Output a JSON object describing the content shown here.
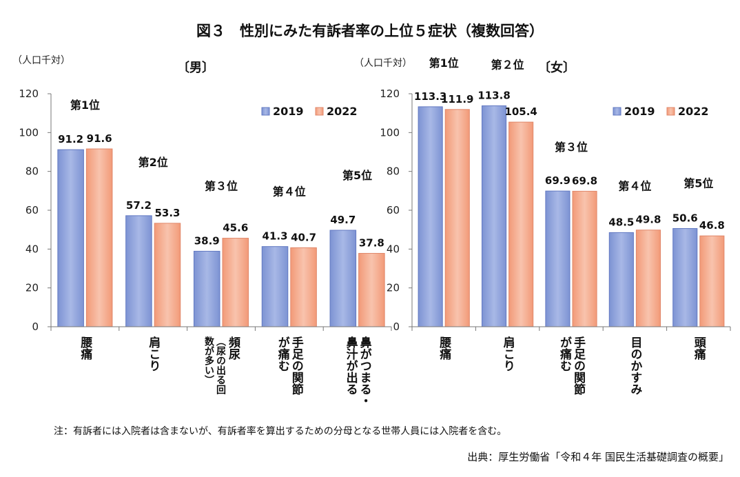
{
  "title": "図３　性別にみた有訴者率の上位５症状（複数回答）",
  "note": "注：有訴者には入院者は含まないが、有訴者率を算出するための分母となる世帯人員には入院者を含む。",
  "source": "出典：厚生労働省「令和４年 国民生活基礎調査の概要」",
  "colors": {
    "2019": "#8fa4dc",
    "2022": "#f5a98a"
  },
  "chart_data": [
    {
      "type": "bar",
      "panel_title": "〔男〕",
      "unit_label": "（人口千対）",
      "ylim": [
        0,
        120
      ],
      "yticks": [
        0,
        20,
        40,
        60,
        80,
        100,
        120
      ],
      "categories": [
        "腰痛",
        "肩こり",
        "頻尿（尿の出る回数が多い）",
        "手足の関節が痛む",
        "鼻がつまる・鼻汁が出る"
      ],
      "category_lines": [
        [
          {
            "t": "腰痛",
            "s": false
          }
        ],
        [
          {
            "t": "肩こり",
            "s": false
          }
        ],
        [
          {
            "t": "頻尿",
            "s": false
          },
          {
            "t": "（尿の出る回",
            "s": true
          },
          {
            "t": "数が多い）",
            "s": true
          }
        ],
        [
          {
            "t": "手足の関節",
            "s": false
          },
          {
            "t": "が痛む",
            "s": false
          }
        ],
        [
          {
            "t": "鼻がつまる・",
            "s": false
          },
          {
            "t": "鼻汁が出る",
            "s": false
          }
        ]
      ],
      "ranks": [
        "第1位",
        "第2位",
        "第３位",
        "第４位",
        "第5位"
      ],
      "series": [
        {
          "name": "2019",
          "values": [
            91.2,
            57.2,
            38.9,
            41.3,
            49.7
          ]
        },
        {
          "name": "2022",
          "values": [
            91.6,
            53.3,
            45.6,
            40.7,
            37.8
          ]
        }
      ],
      "legend_position": "top-right"
    },
    {
      "type": "bar",
      "panel_title": "〔女〕",
      "unit_label": "（人口千対）",
      "ylim": [
        0,
        120
      ],
      "yticks": [
        0,
        20,
        40,
        60,
        80,
        100,
        120
      ],
      "categories": [
        "腰痛",
        "肩こり",
        "手足の関節が痛む",
        "目のかすみ",
        "頭痛"
      ],
      "category_lines": [
        [
          {
            "t": "腰痛",
            "s": false
          }
        ],
        [
          {
            "t": "肩こり",
            "s": false
          }
        ],
        [
          {
            "t": "手足の関節",
            "s": false
          },
          {
            "t": "が痛む",
            "s": false
          }
        ],
        [
          {
            "t": "目のかすみ",
            "s": false
          }
        ],
        [
          {
            "t": "頭痛",
            "s": false
          }
        ]
      ],
      "ranks": [
        "第1位",
        "第２位",
        "第３位",
        "第４位",
        "第5位"
      ],
      "series": [
        {
          "name": "2019",
          "values": [
            113.3,
            113.8,
            69.9,
            48.5,
            50.6
          ]
        },
        {
          "name": "2022",
          "values": [
            111.9,
            105.4,
            69.8,
            49.8,
            46.8
          ]
        }
      ],
      "legend_position": "top-right"
    }
  ]
}
